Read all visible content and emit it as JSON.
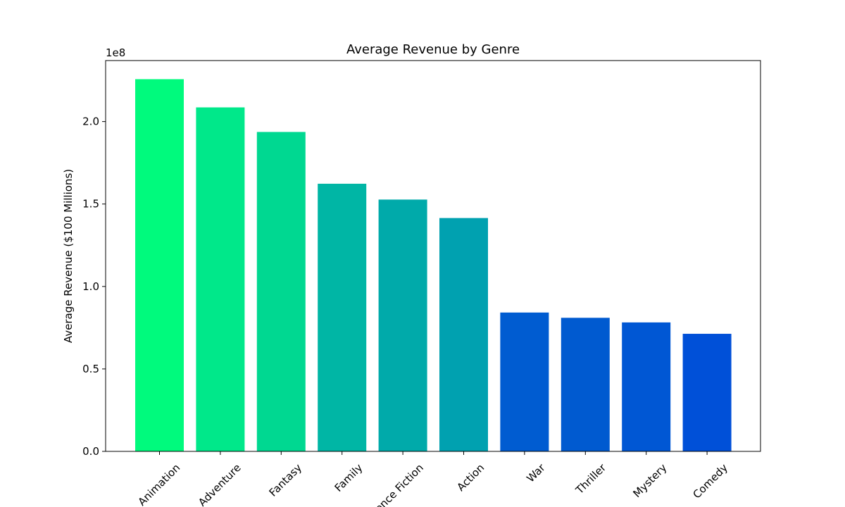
{
  "chart_data": {
    "type": "bar",
    "title": "Average Revenue by Genre",
    "xlabel": "",
    "ylabel": "Average Revenue ($100 Millions)",
    "offset_label": "1e8",
    "categories": [
      "Animation",
      "Adventure",
      "Fantasy",
      "Family",
      "Science Fiction",
      "Action",
      "War",
      "Thriller",
      "Mystery",
      "Comedy"
    ],
    "values": [
      225700000,
      208600000,
      193700000,
      162300000,
      152700000,
      141500000,
      84200000,
      81000000,
      78200000,
      71300000
    ],
    "colors": [
      "#00fa7d",
      "#00e88a",
      "#00d891",
      "#00b6a5",
      "#00aaaa",
      "#00a1b0",
      "#005cd1",
      "#005ad0",
      "#0057d4",
      "#0050d8"
    ],
    "ylim": [
      0,
      237000000
    ],
    "yticks": [
      0,
      50000000,
      100000000,
      150000000,
      200000000
    ],
    "ytick_labels": [
      "0.0",
      "0.5",
      "1.0",
      "1.5",
      "2.0"
    ],
    "grid": false,
    "legend": "none"
  }
}
